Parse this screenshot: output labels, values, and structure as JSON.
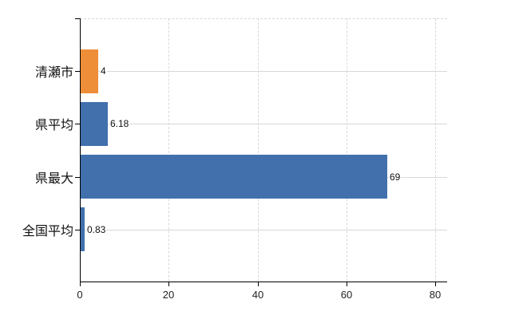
{
  "chart_data": {
    "type": "bar",
    "orientation": "horizontal",
    "title": "",
    "categories": [
      "清瀬市",
      "県平均",
      "県最大",
      "全国平均"
    ],
    "values": [
      4,
      6.18,
      69,
      0.83
    ],
    "value_labels": [
      "4",
      "6.18",
      "69",
      "0.83"
    ],
    "bar_colors": [
      "#ee8e38",
      "#4170ac",
      "#4170ac",
      "#4170ac"
    ],
    "x_ticks": [
      "0",
      "20",
      "40",
      "60",
      "80"
    ],
    "x_tick_values": [
      0,
      20,
      40,
      60,
      80
    ],
    "xlim": [
      0,
      82.7
    ],
    "xlabel": "",
    "ylabel": "",
    "grid": true,
    "legend": false
  },
  "colors": {
    "background": "#ffffff",
    "axis": "#000000",
    "grid": "#d5d9d5",
    "text": "#1a1a1a",
    "bar_blue": "#4170ac",
    "bar_orange": "#ee8e38"
  }
}
